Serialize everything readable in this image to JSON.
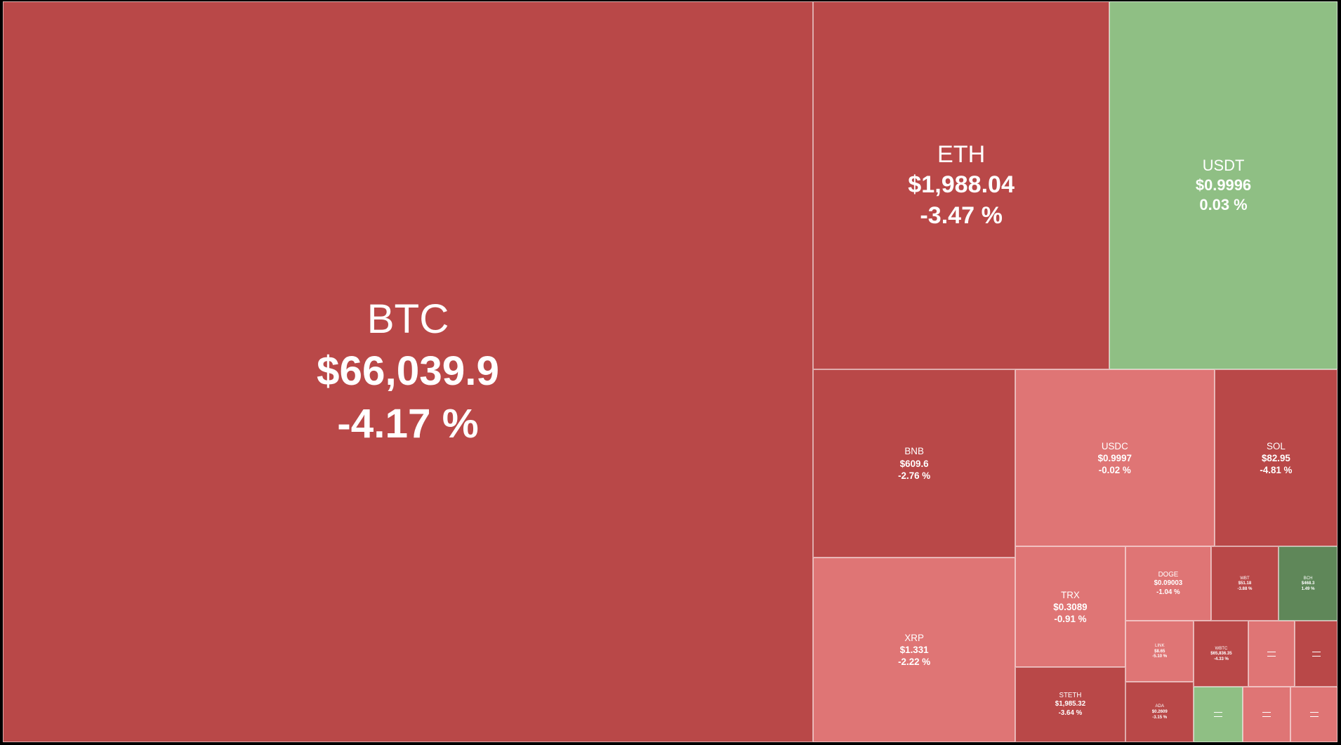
{
  "tiles": [
    {
      "name": "BTC",
      "price": "$66,039.9",
      "change": "-4.17 %",
      "color": "#b94848"
    },
    {
      "name": "ETH",
      "price": "$1,988.04",
      "change": "-3.47 %",
      "color": "#b94848"
    },
    {
      "name": "USDT",
      "price": "$0.9996",
      "change": "0.03 %",
      "color": "#8fbf84"
    },
    {
      "name": "BNB",
      "price": "$609.6",
      "change": "-2.76 %",
      "color": "#b94848"
    },
    {
      "name": "XRP",
      "price": "$1.331",
      "change": "-2.22 %",
      "color": "#df7575"
    },
    {
      "name": "USDC",
      "price": "$0.9997",
      "change": "-0.02 %",
      "color": "#df7575"
    },
    {
      "name": "SOL",
      "price": "$82.95",
      "change": "-4.81 %",
      "color": "#b94848"
    },
    {
      "name": "TRX",
      "price": "$0.3089",
      "change": "-0.91 %",
      "color": "#df7575"
    },
    {
      "name": "STETH",
      "price": "$1,985.32",
      "change": "-3.64 %",
      "color": "#b94848"
    },
    {
      "name": "DOGE",
      "price": "$0.09003",
      "change": "-1.04 %",
      "color": "#df7575"
    },
    {
      "name": "WBT",
      "price": "$51.18",
      "change": "-3.88 %",
      "color": "#b94848"
    },
    {
      "name": "BCH",
      "price": "$468.3",
      "change": "1.49 %",
      "color": "#5f8759"
    },
    {
      "name": "LINK",
      "price": "$8.65",
      "change": "-5.10 %",
      "color": "#df7575"
    },
    {
      "name": "ADA",
      "price": "$0.2609",
      "change": "-3.15 %",
      "color": "#b94848"
    },
    {
      "name": "WBTC",
      "price": "$65,836.35",
      "change": "-4.33 %",
      "color": "#b94848"
    }
  ]
}
